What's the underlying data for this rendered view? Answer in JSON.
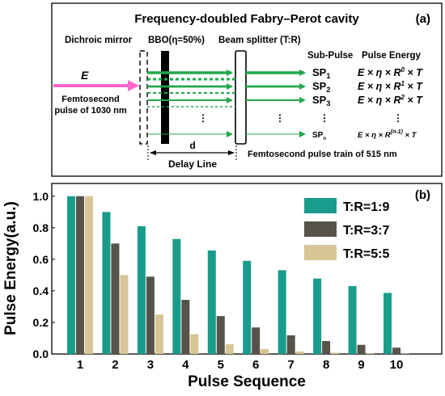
{
  "panel_a": {
    "title": "Frequency-doubled Fabry–Perot cavity",
    "label": "(a)",
    "dichroic_mirror": "Dichroic mirror",
    "bbo": "BBO(η=50%)",
    "beam_splitter": "Beam splitter (T:R)",
    "input_symbol": "E",
    "input_pulse_line1": "Femtosecond",
    "input_pulse_line2": "pulse of 1030 nm",
    "sub_pulse_header": "Sub-Pulse",
    "pulse_energy_header": "Pulse Energy",
    "sub_pulses": [
      {
        "sp": "SP",
        "sub": "1",
        "formula": "E × η × R",
        "exp": "0",
        "tail": " × T"
      },
      {
        "sp": "SP",
        "sub": "2",
        "formula": "E × η × R",
        "exp": "1",
        "tail": " × T"
      },
      {
        "sp": "SP",
        "sub": "3",
        "formula": "E × η × R",
        "exp": "2",
        "tail": " × T"
      },
      {
        "sp": "SP",
        "sub": "n",
        "formula": "E × η × R",
        "exp": "(n-1)",
        "tail": " × T"
      }
    ],
    "distance_label": "d",
    "delay_line": "Delay Line",
    "output_train": "Femtosecond pulse train of 515 nm",
    "colors": {
      "input": "#ff66cc",
      "beam": "#22a84a",
      "bbo": "#000000"
    }
  },
  "chart_data": {
    "type": "bar",
    "label": "(b)",
    "categories": [
      "1",
      "2",
      "3",
      "4",
      "5",
      "6",
      "7",
      "8",
      "9",
      "10"
    ],
    "series": [
      {
        "name": "T:R=1:9",
        "color": "#1a9c8c",
        "values": [
          1.0,
          0.9,
          0.81,
          0.729,
          0.656,
          0.59,
          0.531,
          0.478,
          0.43,
          0.387
        ]
      },
      {
        "name": "T:R=3:7",
        "color": "#57534a",
        "values": [
          1.0,
          0.7,
          0.49,
          0.343,
          0.24,
          0.168,
          0.118,
          0.082,
          0.058,
          0.04
        ]
      },
      {
        "name": "T:R=5:5",
        "color": "#d7c596",
        "values": [
          1.0,
          0.5,
          0.25,
          0.125,
          0.0625,
          0.031,
          0.016,
          0.008,
          0.004,
          0.002
        ]
      }
    ],
    "xlabel": "Pulse Sequence",
    "ylabel": "Pulse Energy(a.u.)",
    "ylim": [
      0.0,
      1.05
    ],
    "yticks": [
      "0.0",
      "0.2",
      "0.4",
      "0.6",
      "0.8",
      "1.0"
    ],
    "ytick_values": [
      0.0,
      0.2,
      0.4,
      0.6,
      0.8,
      1.0
    ],
    "legend_position": "top-right",
    "grid": false
  }
}
